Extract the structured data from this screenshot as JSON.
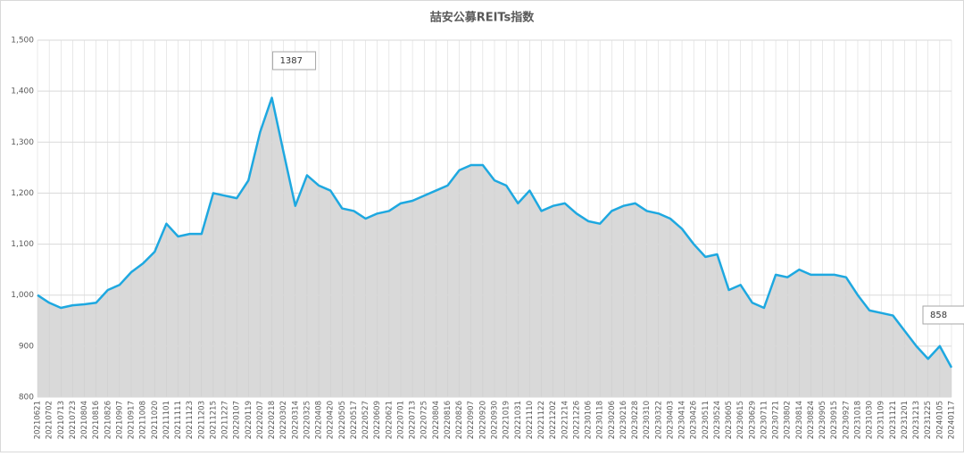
{
  "chart_data": {
    "type": "area",
    "title": "喆安公募REITs指数",
    "categories": [
      "20210621",
      "20210702",
      "20210713",
      "20210723",
      "20210804",
      "20210816",
      "20210826",
      "20210907",
      "20210917",
      "20211008",
      "20211020",
      "20211101",
      "20211111",
      "20211123",
      "20211203",
      "20211215",
      "20211227",
      "20220107",
      "20220119",
      "20220207",
      "20220218",
      "20220302",
      "20220314",
      "20220325",
      "20220408",
      "20220420",
      "20220505",
      "20220517",
      "20220527",
      "20220609",
      "20220621",
      "20220701",
      "20220713",
      "20220725",
      "20220804",
      "20220816",
      "20220826",
      "20220907",
      "20220920",
      "20220930",
      "20221019",
      "20221031",
      "20221110",
      "20221122",
      "20221202",
      "20221214",
      "20221226",
      "20230106",
      "20230118",
      "20230206",
      "20230216",
      "20230228",
      "20230310",
      "20230322",
      "20230403",
      "20230414",
      "20230426",
      "20230511",
      "20230524",
      "20230605",
      "20230615",
      "20230629",
      "20230711",
      "20230721",
      "20230802",
      "20230814",
      "20230824",
      "20230905",
      "20230915",
      "20230927",
      "20231018",
      "20231030",
      "20231109",
      "20231121",
      "20231201",
      "20231213",
      "20231225",
      "20240105",
      "20240117"
    ],
    "series": [
      {
        "name": "喆安公募REITs指数",
        "color": "#1ea8e0",
        "fill": "#d9d9d9",
        "values": [
          1000,
          985,
          975,
          980,
          982,
          985,
          1010,
          1020,
          1045,
          1062,
          1085,
          1140,
          1115,
          1120,
          1120,
          1200,
          1195,
          1190,
          1225,
          1320,
          1387,
          1280,
          1175,
          1235,
          1215,
          1205,
          1170,
          1165,
          1150,
          1160,
          1165,
          1180,
          1185,
          1195,
          1205,
          1215,
          1245,
          1255,
          1255,
          1225,
          1215,
          1180,
          1205,
          1165,
          1175,
          1180,
          1160,
          1145,
          1140,
          1165,
          1175,
          1180,
          1165,
          1160,
          1150,
          1130,
          1100,
          1075,
          1080,
          1010,
          1020,
          985,
          975,
          1040,
          1035,
          1050,
          1040,
          1040,
          1040,
          1035,
          1000,
          970,
          965,
          960,
          930,
          900,
          875,
          900,
          858
        ]
      }
    ],
    "annotations": [
      {
        "text": "1387",
        "index": 20
      },
      {
        "text": "858",
        "index": 78
      }
    ],
    "ylim": [
      800,
      1500
    ],
    "yticks": [
      800,
      {
        "value": 900,
        "label": "900"
      },
      {
        "value": 1000,
        "label": "1,000"
      },
      {
        "value": 1100,
        "label": "1,100"
      },
      {
        "value": 1200,
        "label": "1,200"
      },
      {
        "value": 1300,
        "label": "1,300"
      },
      {
        "value": 1400,
        "label": "1,400"
      },
      {
        "value": 1500,
        "label": "1,500"
      }
    ],
    "grid": true
  }
}
